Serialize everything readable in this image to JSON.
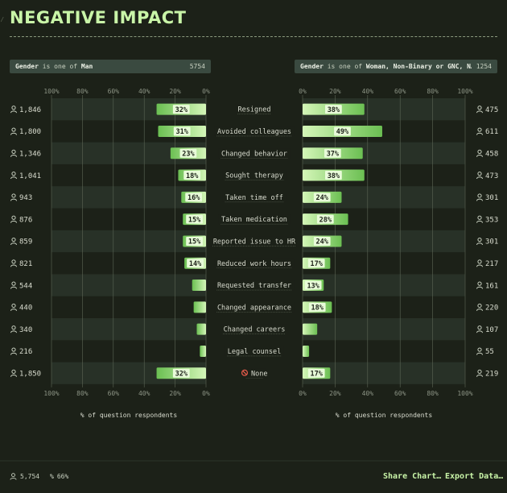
{
  "page": {
    "title": "NEGATIVE IMPACT"
  },
  "filters": {
    "left": {
      "prefix": "Gender",
      "op": "is one of",
      "value": "Man",
      "count": "5754"
    },
    "right": {
      "prefix": "Gender",
      "op": "is one of",
      "value": "Woman, Non-Binary or GNC, N…",
      "count": "1254"
    }
  },
  "axis": {
    "left_ticks": [
      "100%",
      "80%",
      "60%",
      "40%",
      "20%",
      "0%"
    ],
    "right_ticks": [
      "0%",
      "20%",
      "40%",
      "60%",
      "80%",
      "100%"
    ],
    "xlabel": "% of question respondents"
  },
  "footer": {
    "respondents": "5,754",
    "percent": "66%",
    "share_label": "Share Chart…",
    "export_label": "Export Data…"
  },
  "colors": {
    "bar_light": "#d4f6b8",
    "bar_dark": "#6bbf52",
    "accent": "#c9f5a8"
  },
  "chart_data": {
    "type": "bar",
    "orientation": "horizontal-diverging",
    "categories": [
      "Resigned",
      "Avoided colleagues",
      "Changed behavior",
      "Sought therapy",
      "Taken time off",
      "Taken medication",
      "Reported issue to HR",
      "Reduced work hours",
      "Requested transfer",
      "Changed appearance",
      "Changed careers",
      "Legal counsel",
      "None"
    ],
    "xlim": [
      0,
      100
    ],
    "series": [
      {
        "name": "Man",
        "values": [
          32,
          31,
          23,
          18,
          16,
          15,
          15,
          14,
          9,
          8,
          6,
          4,
          32
        ],
        "labels": [
          "32%",
          "31%",
          "23%",
          "18%",
          "16%",
          "15%",
          "15%",
          "14%",
          "",
          "",
          "",
          "",
          "32%"
        ],
        "counts": [
          "1,846",
          "1,800",
          "1,346",
          "1,041",
          "943",
          "876",
          "859",
          "821",
          "544",
          "440",
          "340",
          "216",
          "1,850"
        ]
      },
      {
        "name": "Woman, Non-Binary or GNC, N…",
        "values": [
          38,
          49,
          37,
          38,
          24,
          28,
          24,
          17,
          13,
          18,
          9,
          4,
          17
        ],
        "labels": [
          "38%",
          "49%",
          "37%",
          "38%",
          "24%",
          "28%",
          "24%",
          "17%",
          "13%",
          "18%",
          "",
          "",
          "17%"
        ],
        "counts": [
          "475",
          "611",
          "458",
          "473",
          "301",
          "353",
          "301",
          "217",
          "161",
          "220",
          "107",
          "55",
          "219"
        ]
      }
    ]
  }
}
